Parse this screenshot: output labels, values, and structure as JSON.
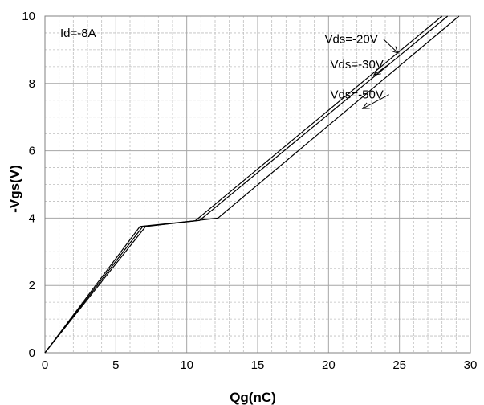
{
  "chart_data": {
    "type": "line",
    "xlabel": "Qg(nC)",
    "ylabel": "-Vgs(V)",
    "xlim": [
      0,
      30
    ],
    "ylim": [
      0,
      10
    ],
    "x_ticks": [
      "0",
      "5",
      "10",
      "15",
      "20",
      "25",
      "30"
    ],
    "y_ticks": [
      "0",
      "2",
      "4",
      "6",
      "8",
      "10"
    ],
    "grid": true,
    "minor_grid": true,
    "annotation": "Id=-8A",
    "series": [
      {
        "name": "Vds=-20V",
        "x": [
          0,
          6.7,
          10.6,
          28.0
        ],
        "y": [
          0,
          3.75,
          3.92,
          10.0
        ],
        "label_at": [
          21.6,
          9.2
        ],
        "arrow_to": [
          24.9,
          8.9
        ]
      },
      {
        "name": "Vds=-30V",
        "x": [
          0,
          6.9,
          10.9,
          28.4
        ],
        "y": [
          0,
          3.75,
          3.93,
          10.0
        ],
        "label_at": [
          22.0,
          8.45
        ],
        "arrow_to": [
          23.2,
          8.25
        ]
      },
      {
        "name": "Vds=-50V",
        "x": [
          0,
          7.1,
          12.2,
          29.2
        ],
        "y": [
          0,
          3.75,
          4.0,
          10.0
        ],
        "label_at": [
          22.0,
          7.55
        ],
        "arrow_to": [
          22.4,
          7.25
        ]
      }
    ],
    "line_color": "#000000",
    "grid_color": "#bfbfbf"
  }
}
